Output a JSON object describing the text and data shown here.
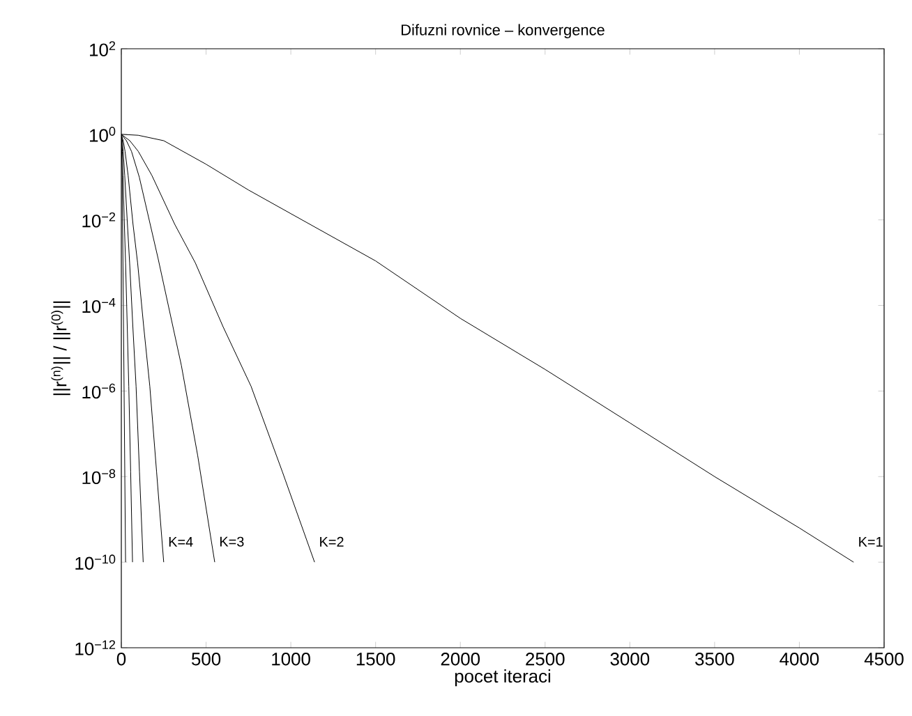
{
  "chart_data": {
    "type": "line",
    "title": "Difuzni rovnice – konvergence",
    "xlabel": "pocet iteraci",
    "ylabel": "||r$^{(n)}$|| / ||r$^{(0)}$||",
    "log": "y",
    "xlim": [
      0,
      4500
    ],
    "ylim": [
      1e-12,
      100
    ],
    "xticks": [
      0,
      500,
      1000,
      1500,
      2000,
      2500,
      3000,
      3500,
      4000,
      4500
    ],
    "yticks": [
      {
        "value": 1e-12,
        "label": "10$^{−12}$"
      },
      {
        "value": 1e-10,
        "label": "10$^{−10}$"
      },
      {
        "value": 1e-08,
        "label": "10$^{−8}$"
      },
      {
        "value": 1e-06,
        "label": "10$^{−6}$"
      },
      {
        "value": 0.0001,
        "label": "10$^{−4}$"
      },
      {
        "value": 0.01,
        "label": "10$^{−2}$"
      },
      {
        "value": 1,
        "label": "10$^{0}$"
      },
      {
        "value": 100,
        "label": "10$^{2}$"
      }
    ],
    "series": [
      {
        "name": "K=1",
        "color": "#000000",
        "x": [
          0,
          100,
          250,
          500,
          750,
          1000,
          1500,
          2000,
          2500,
          3000,
          3500,
          4000,
          4320
        ],
        "values": [
          1,
          0.95,
          0.71,
          0.2,
          0.05,
          0.014,
          0.0011,
          5e-05,
          3.2e-06,
          1.8e-07,
          1e-08,
          6.3e-10,
          1e-10
        ]
      },
      {
        "name": "K=2",
        "color": "#000000",
        "x": [
          0,
          50,
          100,
          180,
          315,
          436,
          600,
          765,
          950,
          1140
        ],
        "values": [
          1,
          0.71,
          0.4,
          0.11,
          0.0079,
          0.001,
          3.2e-05,
          1.3e-06,
          1.3e-08,
          1e-10
        ]
      },
      {
        "name": "K=3",
        "color": "#000000",
        "x": [
          0,
          30,
          60,
          106,
          216,
          354,
          450,
          551
        ],
        "values": [
          1,
          0.71,
          0.4,
          0.1,
          0.0013,
          4e-06,
          3.2e-08,
          1e-10
        ]
      },
      {
        "name": "K=4",
        "color": "#000000",
        "x": [
          0,
          11,
          22,
          40,
          69,
          96,
          132,
          168,
          208,
          250
        ],
        "values": [
          1,
          0.71,
          0.4,
          0.11,
          0.0079,
          0.001,
          3.2e-05,
          1.3e-06,
          1.3e-08,
          1e-10
        ]
      },
      {
        "color": "#000000",
        "x": [
          0,
          6,
          11,
          20,
          36,
          49,
          68,
          87,
          107,
          129
        ],
        "values": [
          1,
          0.71,
          0.4,
          0.11,
          0.0079,
          0.001,
          3.2e-05,
          1.3e-06,
          1.3e-08,
          1e-10
        ]
      },
      {
        "color": "#000000",
        "x": [
          0,
          3,
          6,
          10,
          18,
          25,
          35,
          44,
          55,
          66
        ],
        "values": [
          1,
          0.71,
          0.4,
          0.11,
          0.0079,
          0.001,
          3.2e-05,
          1.3e-06,
          1.3e-08,
          1e-10
        ]
      },
      {
        "color": "#000000",
        "x": [
          0,
          5,
          12,
          25
        ],
        "values": [
          1,
          0.1,
          0.0001,
          1e-10
        ]
      }
    ]
  }
}
